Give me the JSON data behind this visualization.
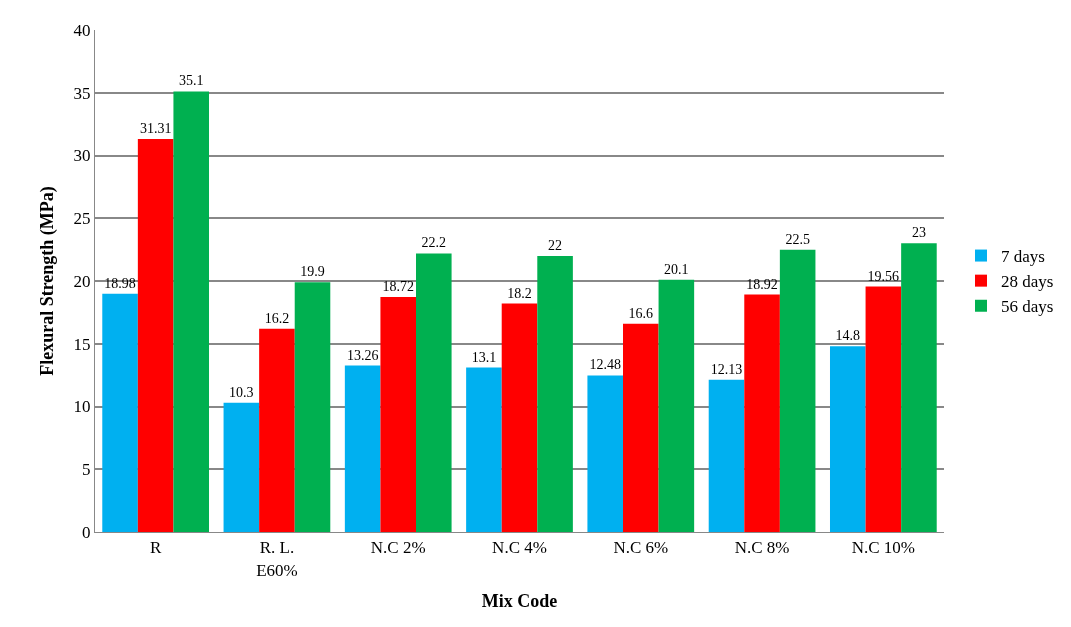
{
  "chart_data": {
    "type": "bar",
    "xlabel": "Mix Code",
    "ylabel": "Flexural Strength (MPa)",
    "categories": [
      "R",
      "R. L.\nE60%",
      "N.C 2%",
      "N.C 4%",
      "N.C 6%",
      "N.C 8%",
      "N.C 10%"
    ],
    "series": [
      {
        "name": "7 days",
        "color": "#00b0f0",
        "values": [
          18.98,
          10.3,
          13.26,
          13.1,
          12.48,
          12.13,
          14.8
        ]
      },
      {
        "name": "28 days",
        "color": "#ff0000",
        "values": [
          31.31,
          16.2,
          18.72,
          18.2,
          16.6,
          18.92,
          19.56
        ]
      },
      {
        "name": "56 days",
        "color": "#00b050",
        "values": [
          35.1,
          19.9,
          22.2,
          22,
          20.1,
          22.5,
          23
        ]
      }
    ],
    "ylim": [
      0,
      40
    ],
    "yticks": [
      0,
      5,
      10,
      15,
      20,
      25,
      30,
      35,
      40
    ],
    "grid": "y",
    "legend": "right",
    "data_labels": true
  }
}
